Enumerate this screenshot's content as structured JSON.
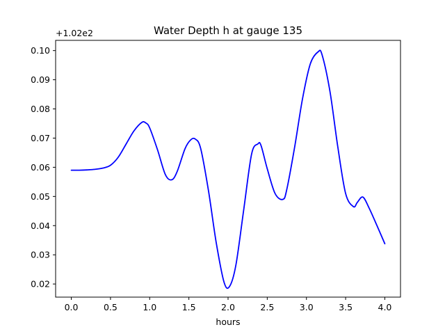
{
  "chart_data": {
    "type": "line",
    "title": "Water Depth h at gauge 135",
    "xlabel": "hours",
    "ylabel": "",
    "y_offset_label": "+1.02e2",
    "xlim": [
      -0.2,
      4.2
    ],
    "ylim": [
      0.0155,
      0.1035
    ],
    "xticks": [
      0.0,
      0.5,
      1.0,
      1.5,
      2.0,
      2.5,
      3.0,
      3.5,
      4.0
    ],
    "xtick_labels": [
      "0.0",
      "0.5",
      "1.0",
      "1.5",
      "2.0",
      "2.5",
      "3.0",
      "3.5",
      "4.0"
    ],
    "yticks": [
      0.02,
      0.03,
      0.04,
      0.05,
      0.06,
      0.07,
      0.08,
      0.09,
      0.1
    ],
    "ytick_labels": [
      "0.02",
      "0.03",
      "0.04",
      "0.05",
      "0.06",
      "0.07",
      "0.08",
      "0.09",
      "0.10"
    ],
    "grid": false,
    "series": [
      {
        "color": "#0000ff",
        "x": [
          0.0,
          0.1,
          0.2,
          0.3,
          0.4,
          0.5,
          0.6,
          0.7,
          0.8,
          0.9,
          0.95,
          1.0,
          1.1,
          1.2,
          1.28,
          1.35,
          1.45,
          1.52,
          1.58,
          1.65,
          1.75,
          1.85,
          1.95,
          2.02,
          2.1,
          2.2,
          2.3,
          2.38,
          2.42,
          2.5,
          2.6,
          2.7,
          2.75,
          2.85,
          2.95,
          3.05,
          3.15,
          3.2,
          3.3,
          3.4,
          3.5,
          3.6,
          3.65,
          3.72,
          3.8,
          3.9,
          4.0
        ],
        "y": [
          0.059,
          0.059,
          0.0591,
          0.0593,
          0.0597,
          0.0607,
          0.0635,
          0.068,
          0.0725,
          0.0754,
          0.0752,
          0.0735,
          0.066,
          0.0575,
          0.0557,
          0.0585,
          0.0663,
          0.0693,
          0.0697,
          0.0665,
          0.052,
          0.034,
          0.0205,
          0.0192,
          0.0265,
          0.0455,
          0.0645,
          0.068,
          0.0675,
          0.0595,
          0.051,
          0.049,
          0.0525,
          0.067,
          0.0835,
          0.0955,
          0.0996,
          0.0985,
          0.086,
          0.067,
          0.051,
          0.0465,
          0.048,
          0.0498,
          0.046,
          0.04,
          0.0338
        ]
      }
    ]
  }
}
